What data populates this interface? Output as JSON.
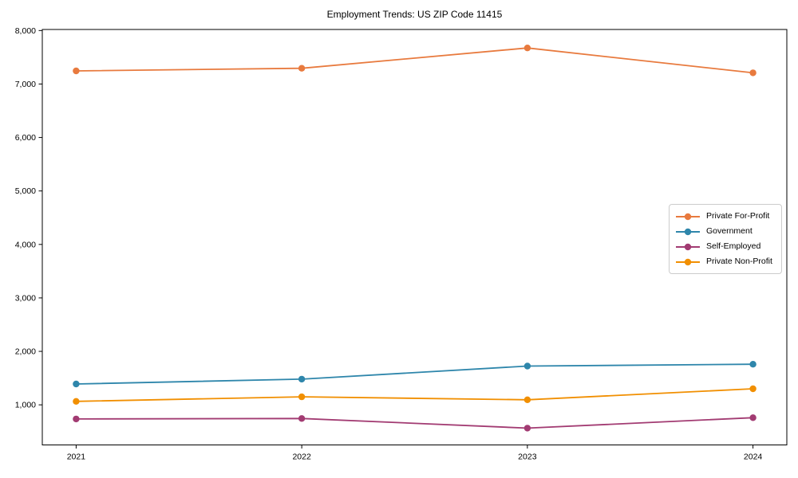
{
  "chart_data": {
    "type": "line",
    "title": "Employment Trends: US ZIP Code 11415",
    "x": [
      2021,
      2022,
      2023,
      2024
    ],
    "xtick_labels": [
      "2021",
      "2022",
      "2023",
      "2024"
    ],
    "yticks": [
      1000,
      2000,
      3000,
      4000,
      5000,
      6000,
      7000,
      8000
    ],
    "ytick_labels": [
      "1,000",
      "2,000",
      "3,000",
      "4,000",
      "5,000",
      "6,000",
      "7,000",
      "8,000"
    ],
    "series": [
      {
        "name": "Private For-Profit",
        "color": "#E87A3E",
        "values": [
          7245,
          7295,
          7675,
          7210
        ]
      },
      {
        "name": "Government",
        "color": "#2E86AB",
        "values": [
          1390,
          1480,
          1725,
          1760
        ]
      },
      {
        "name": "Self-Employed",
        "color": "#A23B72",
        "values": [
          735,
          745,
          565,
          760
        ]
      },
      {
        "name": "Private Non-Profit",
        "color": "#F18F01",
        "values": [
          1065,
          1150,
          1095,
          1300
        ]
      }
    ],
    "xlim": [
      2020.85,
      2024.15
    ],
    "ylim": [
      250,
      8020
    ],
    "grid": false,
    "legend_position": "center-right",
    "marker": "circle",
    "background_color": "#ffffff",
    "axis_color": "#000000"
  }
}
